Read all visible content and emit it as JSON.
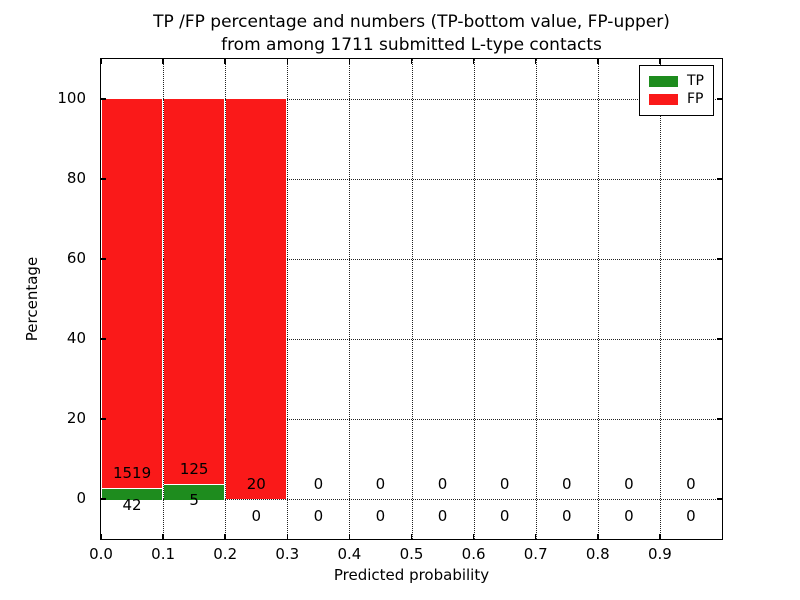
{
  "title": {
    "line1": "TP /FP percentage and numbers (TP-bottom value, FP-upper)",
    "line2": "from among 1711 submitted L-type contacts"
  },
  "axes": {
    "x_label": "Predicted probability",
    "y_label": "Percentage",
    "x_tick_labels": [
      "0.0",
      "0.1",
      "0.2",
      "0.3",
      "0.4",
      "0.5",
      "0.6",
      "0.7",
      "0.8",
      "0.9"
    ],
    "y_tick_labels": [
      "0",
      "20",
      "40",
      "60",
      "80",
      "100"
    ],
    "y_tick_values": [
      0,
      20,
      40,
      60,
      80,
      100
    ]
  },
  "legend": {
    "items": [
      {
        "label": "TP",
        "color": "#1e8c1e"
      },
      {
        "label": "FP",
        "color": "#fa1919"
      }
    ]
  },
  "chart_data": {
    "type": "bar",
    "stacked": true,
    "title": "TP /FP percentage and numbers (TP-bottom value, FP-upper) from among 1711 submitted L-type contacts",
    "xlabel": "Predicted probability",
    "ylabel": "Percentage",
    "xlim": [
      0.0,
      1.0
    ],
    "ylim": [
      -10,
      110
    ],
    "grid": true,
    "legend_position": "upper right",
    "total_submitted": 1711,
    "bin_width": 0.1,
    "bin_starts": [
      0.0,
      0.1,
      0.2,
      0.3,
      0.4,
      0.5,
      0.6,
      0.7,
      0.8,
      0.9
    ],
    "series": [
      {
        "name": "TP",
        "color": "#1e8c1e",
        "counts": [
          42,
          5,
          0,
          0,
          0,
          0,
          0,
          0,
          0,
          0
        ]
      },
      {
        "name": "FP",
        "color": "#fa1919",
        "counts": [
          1519,
          125,
          20,
          0,
          0,
          0,
          0,
          0,
          0,
          0
        ]
      }
    ],
    "bar_labels_note": "FP count printed above TP bar top, TP count printed below zero line, per bin",
    "percent_rule": "TP% = tp/(tp+fp)*100 per bin; TP and FP stack to 100% in non-empty bins"
  }
}
